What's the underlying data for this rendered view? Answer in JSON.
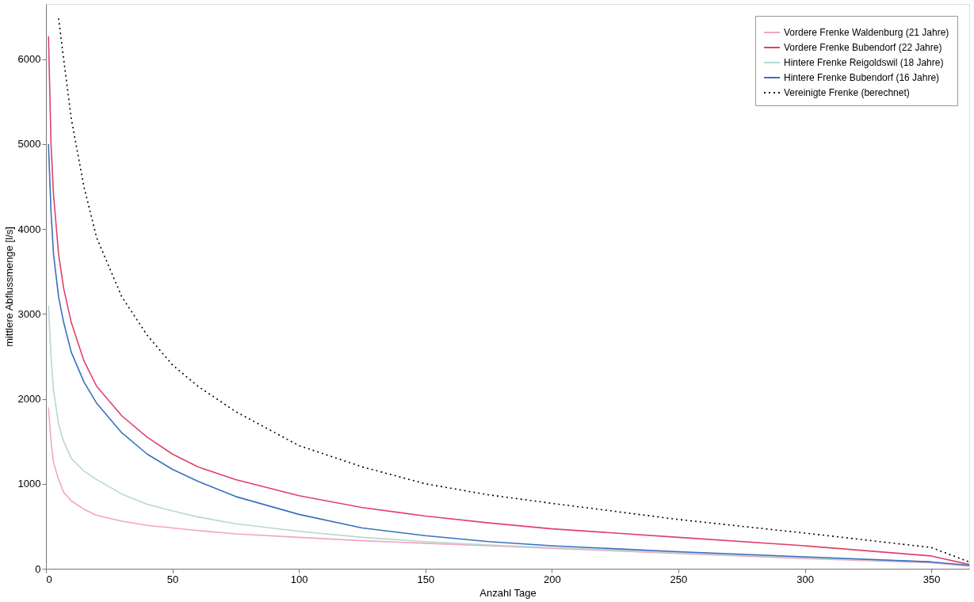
{
  "chart_data": {
    "type": "line",
    "xlabel": "Anzahl Tage",
    "ylabel": "mittlere Abflussmenge [l/s]",
    "x": [
      1,
      2,
      3,
      5,
      7,
      10,
      15,
      20,
      30,
      40,
      50,
      60,
      75,
      100,
      125,
      150,
      175,
      200,
      250,
      300,
      350,
      365
    ],
    "series": [
      {
        "name": "Vordere Frenke Waldenburg (21 Jahre)",
        "color": "#f2a6bd",
        "line_style": "solid",
        "values": [
          1900,
          1500,
          1250,
          1050,
          900,
          800,
          700,
          630,
          560,
          510,
          480,
          450,
          410,
          370,
          330,
          300,
          270,
          240,
          180,
          120,
          70,
          30
        ]
      },
      {
        "name": "Vordere Frenke Bubendorf (22 Jahre)",
        "color": "#e0406a",
        "line_style": "solid",
        "values": [
          6270,
          5000,
          4400,
          3700,
          3300,
          2900,
          2450,
          2150,
          1800,
          1550,
          1350,
          1200,
          1050,
          860,
          720,
          620,
          540,
          470,
          370,
          270,
          150,
          50
        ]
      },
      {
        "name": "Hintere Frenke Reigoldswil (18 Jahre)",
        "color": "#b9d6d6",
        "line_style": "solid",
        "values": [
          3100,
          2500,
          2100,
          1700,
          1500,
          1300,
          1150,
          1050,
          880,
          760,
          680,
          610,
          530,
          440,
          370,
          320,
          280,
          250,
          190,
          130,
          80,
          40
        ]
      },
      {
        "name": "Hintere Frenke Bubendorf (16 Jahre)",
        "color": "#3a6fc0",
        "line_style": "solid",
        "values": [
          5000,
          4200,
          3700,
          3200,
          2900,
          2550,
          2200,
          1950,
          1600,
          1350,
          1170,
          1030,
          850,
          640,
          480,
          390,
          320,
          270,
          200,
          140,
          80,
          40
        ]
      },
      {
        "name": "Vereinigte Frenke (berechnet)",
        "color": "#000000",
        "line_style": "dotted",
        "x": [
          5,
          7,
          10,
          15,
          20,
          30,
          40,
          50,
          60,
          75,
          100,
          125,
          150,
          175,
          200,
          250,
          300,
          350,
          365
        ],
        "values": [
          6480,
          6000,
          5300,
          4500,
          3900,
          3200,
          2750,
          2400,
          2150,
          1850,
          1450,
          1200,
          1000,
          870,
          770,
          580,
          420,
          250,
          80
        ]
      }
    ],
    "xlim": [
      0,
      365
    ],
    "xticks": [
      0,
      50,
      100,
      150,
      200,
      250,
      300,
      350
    ],
    "ylim": [
      0,
      6650
    ],
    "yticks": [
      0,
      1000,
      2000,
      3000,
      4000,
      5000,
      6000
    ],
    "grid": false,
    "legend": "top right",
    "marker": "none"
  }
}
